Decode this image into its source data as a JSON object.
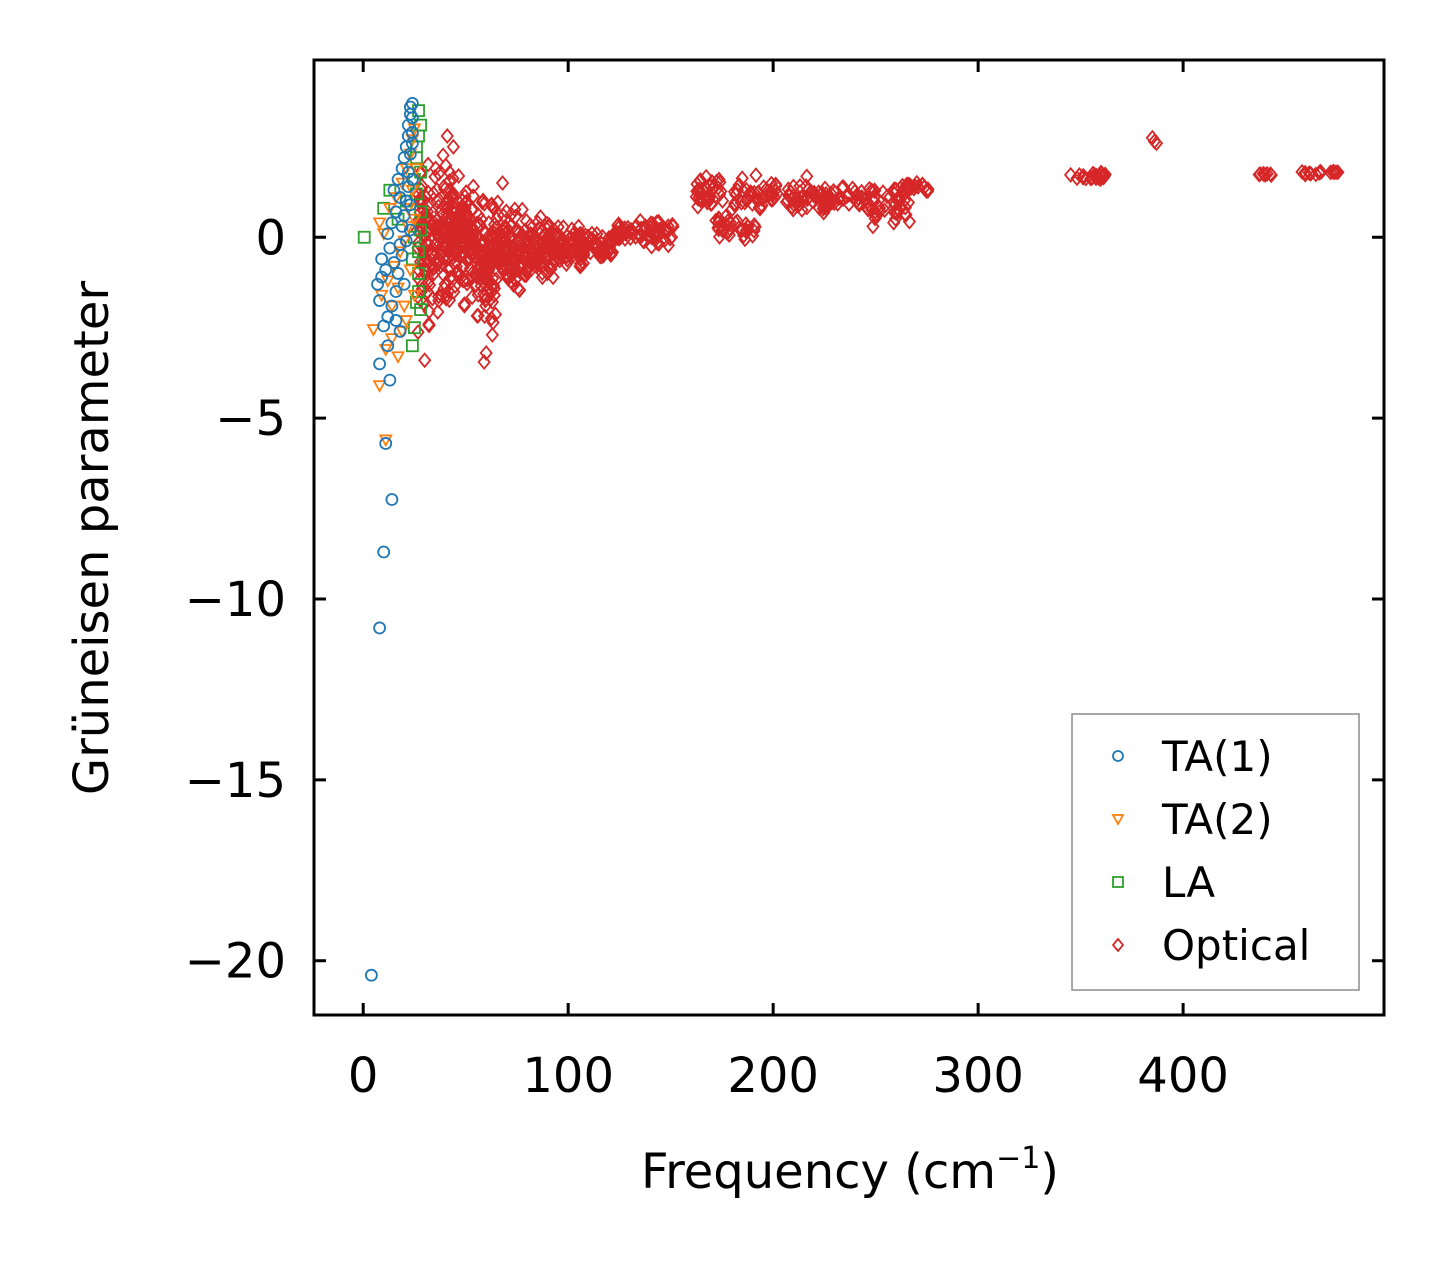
{
  "chart_data": {
    "type": "scatter",
    "xlabel": "Frequency (cm",
    "xlabel_sup": "−1",
    "xlabel_close": ")",
    "ylabel": "Grüneisen parameter",
    "xlim": [
      -24,
      498
    ],
    "ylim": [
      -21.5,
      4.9
    ],
    "xticks": [
      0,
      100,
      200,
      300,
      400
    ],
    "xtick_labels": [
      "0",
      "100",
      "200",
      "300",
      "400"
    ],
    "yticks": [
      0,
      -5,
      -10,
      -15,
      -20
    ],
    "ytick_labels": [
      "0",
      "−5",
      "−10",
      "−15",
      "−20"
    ],
    "legend_position": "lower-right",
    "series": [
      {
        "name": "TA(1)",
        "marker": "circle",
        "color": "#1f77b4",
        "points": [
          [
            4,
            -20.4
          ],
          [
            8,
            -10.8
          ],
          [
            10,
            -8.7
          ],
          [
            14,
            -7.25
          ],
          [
            11,
            -5.7
          ],
          [
            8,
            -3.5
          ],
          [
            13,
            -3.95
          ],
          [
            7,
            -1.3
          ],
          [
            8,
            -1.75
          ],
          [
            9,
            -1.1
          ],
          [
            10,
            -2.45
          ],
          [
            12,
            -2.2
          ],
          [
            14,
            -1.9
          ],
          [
            16,
            -1.5
          ],
          [
            18,
            -2.6
          ],
          [
            20,
            -1.3
          ],
          [
            9,
            -0.6
          ],
          [
            11,
            -0.9
          ],
          [
            13,
            -0.3
          ],
          [
            15,
            -0.7
          ],
          [
            12,
            0.1
          ],
          [
            14,
            0.4
          ],
          [
            16,
            0.7
          ],
          [
            18,
            1.1
          ],
          [
            15,
            1.3
          ],
          [
            17,
            1.6
          ],
          [
            19,
            1.9
          ],
          [
            20,
            2.2
          ],
          [
            21,
            2.5
          ],
          [
            22,
            2.8
          ],
          [
            22,
            3.1
          ],
          [
            23,
            3.4
          ],
          [
            23,
            3.6
          ],
          [
            24,
            3.7
          ],
          [
            18,
            -0.2
          ],
          [
            19,
            0.3
          ],
          [
            20,
            0.6
          ],
          [
            21,
            1.0
          ],
          [
            22,
            1.4
          ],
          [
            22,
            1.8
          ],
          [
            23,
            2.3
          ],
          [
            24,
            2.9
          ],
          [
            24,
            3.3
          ],
          [
            17,
            -1.0
          ],
          [
            19,
            -0.5
          ],
          [
            21,
            -0.1
          ],
          [
            23,
            0.2
          ],
          [
            23,
            0.9
          ],
          [
            24,
            1.6
          ],
          [
            24,
            2.6
          ],
          [
            16,
            -2.3
          ],
          [
            12,
            -3.0
          ]
        ]
      },
      {
        "name": "TA(2)",
        "marker": "triangle-down",
        "color": "#ff7f0e",
        "points": [
          [
            8,
            -4.1
          ],
          [
            11,
            -5.6
          ],
          [
            5,
            -2.55
          ],
          [
            11,
            -3.1
          ],
          [
            14,
            -2.8
          ],
          [
            17,
            -3.3
          ],
          [
            19,
            -2.6
          ],
          [
            21,
            -2.3
          ],
          [
            9,
            -1.6
          ],
          [
            12,
            -1.2
          ],
          [
            15,
            -0.8
          ],
          [
            18,
            -0.4
          ],
          [
            20,
            -0.1
          ],
          [
            22,
            0.3
          ],
          [
            8,
            0.4
          ],
          [
            10,
            0.1
          ],
          [
            13,
            0.8
          ],
          [
            16,
            1.1
          ],
          [
            19,
            1.5
          ],
          [
            21,
            1.9
          ],
          [
            23,
            2.3
          ],
          [
            24,
            2.7
          ],
          [
            25,
            3.0
          ],
          [
            22,
            0.8
          ],
          [
            24,
            1.3
          ],
          [
            23,
            -0.9
          ],
          [
            25,
            -1.6
          ],
          [
            20,
            -1.9
          ],
          [
            17,
            -1.4
          ],
          [
            14,
            -1.9
          ],
          [
            25,
            0.5
          ],
          [
            26,
            1.9
          ]
        ]
      },
      {
        "name": "LA",
        "marker": "square",
        "color": "#2ca02c",
        "points": [
          [
            0.5,
            0
          ],
          [
            10,
            0.8
          ],
          [
            13,
            1.3
          ],
          [
            17,
            0.5
          ],
          [
            21,
            1.0
          ],
          [
            25,
            1.6
          ],
          [
            26,
            2.2
          ],
          [
            27,
            2.8
          ],
          [
            28,
            3.1
          ],
          [
            27,
            3.5
          ],
          [
            24,
            -3.0
          ],
          [
            25,
            -2.5
          ],
          [
            26,
            -1.8
          ],
          [
            27,
            -1.0
          ],
          [
            27,
            -0.4
          ],
          [
            28,
            0.2
          ],
          [
            28,
            0.7
          ],
          [
            26,
            1.2
          ],
          [
            25,
            0.0
          ],
          [
            24,
            -0.6
          ],
          [
            28,
            1.8
          ],
          [
            27,
            -1.5
          ],
          [
            26,
            2.5
          ],
          [
            28,
            -2.0
          ]
        ]
      },
      {
        "name": "Optical",
        "marker": "diamond",
        "color": "#d62728",
        "bands": [
          {
            "x": [
              26,
              34
            ],
            "y": [
              -3.4,
              2.8
            ],
            "n": 70
          },
          {
            "x": [
              34,
              44
            ],
            "y": [
              -2.6,
              2.8
            ],
            "n": 110
          },
          {
            "x": [
              44,
              54
            ],
            "y": [
              -2.2,
              2.2
            ],
            "n": 110
          },
          {
            "x": [
              54,
              66
            ],
            "y": [
              -2.8,
              1.8
            ],
            "n": 110
          },
          {
            "x": [
              66,
              80
            ],
            "y": [
              -1.9,
              1.1
            ],
            "n": 100
          },
          {
            "x": [
              80,
              94
            ],
            "y": [
              -1.4,
              0.7
            ],
            "n": 90
          },
          {
            "x": [
              94,
              108
            ],
            "y": [
              -1.2,
              0.5
            ],
            "n": 70
          },
          {
            "x": [
              108,
              122
            ],
            "y": [
              -0.9,
              0.3
            ],
            "n": 45
          },
          {
            "x": [
              122,
              136
            ],
            "y": [
              -0.3,
              0.6
            ],
            "n": 35
          },
          {
            "x": [
              136,
              152
            ],
            "y": [
              -0.5,
              0.7
            ],
            "n": 35
          },
          {
            "x": [
              162,
              176
            ],
            "y": [
              0.6,
              1.9
            ],
            "n": 35
          },
          {
            "x": [
              172,
              192
            ],
            "y": [
              -0.2,
              0.7
            ],
            "n": 35
          },
          {
            "x": [
              180,
              202
            ],
            "y": [
              0.5,
              1.8
            ],
            "n": 45
          },
          {
            "x": [
              206,
              226
            ],
            "y": [
              0.3,
              1.8
            ],
            "n": 45
          },
          {
            "x": [
              224,
              250
            ],
            "y": [
              0.7,
              1.6
            ],
            "n": 45
          },
          {
            "x": [
              246,
              268
            ],
            "y": [
              0.1,
              1.5
            ],
            "n": 40
          },
          {
            "x": [
              262,
              278
            ],
            "y": [
              1.2,
              1.6
            ],
            "n": 20
          },
          {
            "x": [
              345,
              362
            ],
            "y": [
              1.55,
              1.85
            ],
            "n": 25
          },
          {
            "x": [
              437,
              443
            ],
            "y": [
              1.65,
              1.85
            ],
            "n": 8
          },
          {
            "x": [
              458,
              466
            ],
            "y": [
              1.7,
              1.85
            ],
            "n": 8
          },
          {
            "x": [
              466,
              476
            ],
            "y": [
              1.75,
              1.85
            ],
            "n": 10
          }
        ],
        "points": [
          [
            59,
            -3.45
          ],
          [
            60,
            -3.2
          ],
          [
            68,
            1.5
          ],
          [
            41,
            2.8
          ],
          [
            44,
            2.5
          ],
          [
            386,
            2.65
          ],
          [
            385,
            2.75
          ],
          [
            387,
            2.6
          ],
          [
            30,
            -3.4
          ],
          [
            32,
            -2.4
          ],
          [
            63,
            -2.7
          ]
        ]
      }
    ]
  }
}
